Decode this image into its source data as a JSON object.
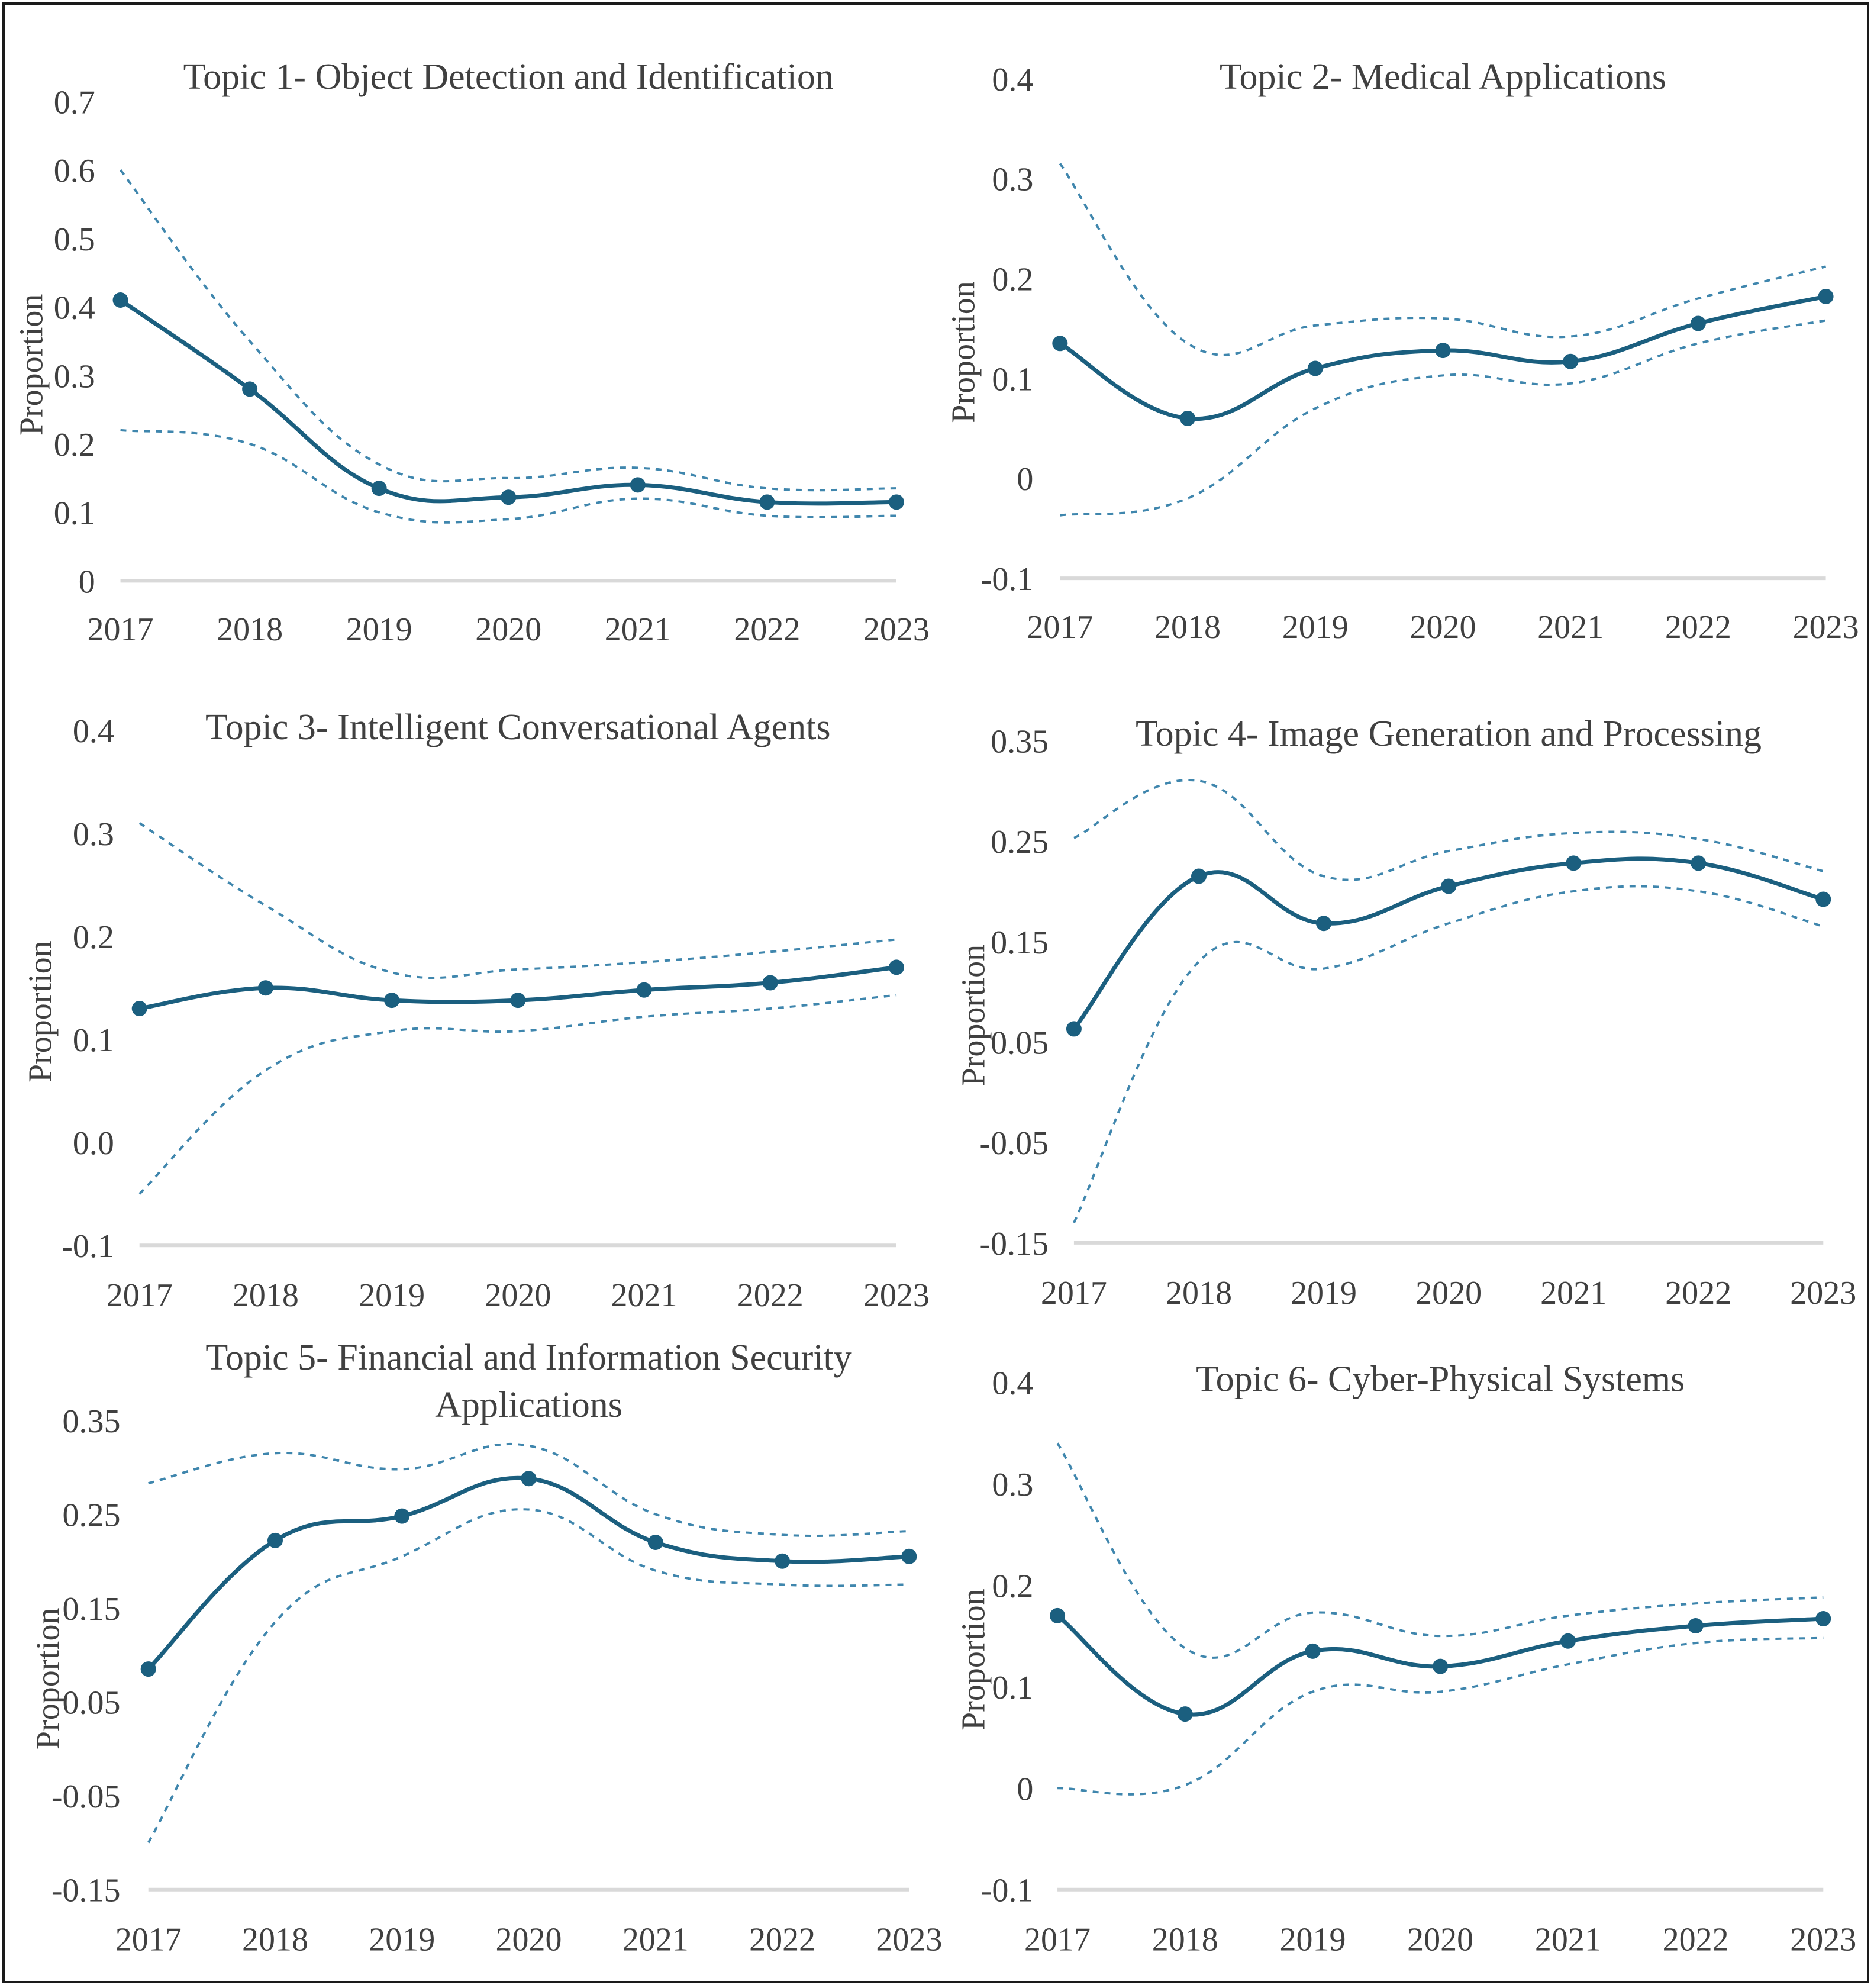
{
  "figure": {
    "series_names": {
      "mean": "Proportion",
      "upper": "Upper bound",
      "lower": "Lower bound"
    },
    "colors": {
      "line": "#1b5f7f",
      "ci": "#3f86ad",
      "axis": "#d9d9d9",
      "text": "#404040"
    }
  },
  "chart_data": [
    {
      "type": "line",
      "title": "Topic 1- Object Detection and Identification",
      "xlabel": "",
      "ylabel": "Proportion",
      "categories": [
        "2017",
        "2018",
        "2019",
        "2020",
        "2021",
        "2022",
        "2023"
      ],
      "yticks": [
        "0",
        "0.1",
        "0.2",
        "0.3",
        "0.4",
        "0.5",
        "0.6",
        "0.7"
      ],
      "ylim": [
        0,
        0.7
      ],
      "grid": false,
      "series": [
        {
          "name": "Proportion",
          "values": [
            0.41,
            0.28,
            0.135,
            0.122,
            0.14,
            0.115,
            0.115
          ]
        },
        {
          "name": "Upper bound",
          "values": [
            0.6,
            0.35,
            0.17,
            0.15,
            0.165,
            0.135,
            0.135
          ]
        },
        {
          "name": "Lower bound",
          "values": [
            0.22,
            0.2,
            0.1,
            0.09,
            0.12,
            0.095,
            0.095
          ]
        }
      ]
    },
    {
      "type": "line",
      "title": "Topic 2- Medical Applications",
      "xlabel": "",
      "ylabel": "Proportion",
      "categories": [
        "2017",
        "2018",
        "2019",
        "2020",
        "2021",
        "2022",
        "2023"
      ],
      "yticks": [
        "-0.1",
        "0",
        "0.1",
        "0.2",
        "0.3",
        "0.4"
      ],
      "ylim": [
        -0.1,
        0.4
      ],
      "grid": false,
      "series": [
        {
          "name": "Proportion",
          "values": [
            0.135,
            0.06,
            0.11,
            0.128,
            0.117,
            0.155,
            0.182
          ]
        },
        {
          "name": "Upper bound",
          "values": [
            0.315,
            0.135,
            0.153,
            0.16,
            0.142,
            0.18,
            0.212
          ]
        },
        {
          "name": "Lower bound",
          "values": [
            -0.037,
            -0.02,
            0.07,
            0.103,
            0.095,
            0.135,
            0.158
          ]
        }
      ]
    },
    {
      "type": "line",
      "title": "Topic 3- Intelligent Conversational Agents",
      "xlabel": "",
      "ylabel": "Proportion",
      "categories": [
        "2017",
        "2018",
        "2019",
        "2020",
        "2021",
        "2022",
        "2023"
      ],
      "yticks": [
        "-0.1",
        "0.0",
        "0.1",
        "0.2",
        "0.3",
        "0.4"
      ],
      "ylim": [
        -0.1,
        0.4
      ],
      "grid": false,
      "series": [
        {
          "name": "Proportion",
          "values": [
            0.13,
            0.15,
            0.138,
            0.138,
            0.148,
            0.155,
            0.17
          ]
        },
        {
          "name": "Upper bound",
          "values": [
            0.31,
            0.23,
            0.165,
            0.168,
            0.175,
            0.185,
            0.197
          ]
        },
        {
          "name": "Lower bound",
          "values": [
            -0.05,
            0.07,
            0.108,
            0.108,
            0.122,
            0.13,
            0.143
          ]
        }
      ]
    },
    {
      "type": "line",
      "title": "Topic 4- Image Generation and Processing",
      "xlabel": "",
      "ylabel": "Proportion",
      "categories": [
        "2017",
        "2018",
        "2019",
        "2020",
        "2021",
        "2022",
        "2023"
      ],
      "yticks": [
        "-0.15",
        "-0.05",
        "0.05",
        "0.15",
        "0.25",
        "0.35"
      ],
      "ylim": [
        -0.15,
        0.35
      ],
      "grid": false,
      "series": [
        {
          "name": "Proportion",
          "values": [
            0.063,
            0.215,
            0.168,
            0.205,
            0.228,
            0.228,
            0.192
          ]
        },
        {
          "name": "Upper bound",
          "values": [
            0.253,
            0.31,
            0.215,
            0.24,
            0.258,
            0.252,
            0.22
          ]
        },
        {
          "name": "Lower bound",
          "values": [
            -0.13,
            0.13,
            0.123,
            0.168,
            0.2,
            0.2,
            0.165
          ]
        }
      ]
    },
    {
      "type": "line",
      "title": "Topic 5- Financial and Information Security Applications",
      "title_lines": [
        "Topic 5- Financial and Information Security",
        "Applications"
      ],
      "xlabel": "",
      "ylabel": "Proportion",
      "categories": [
        "2017",
        "2018",
        "2019",
        "2020",
        "2021",
        "2022",
        "2023"
      ],
      "yticks": [
        "-0.15",
        "-0.05",
        "0.05",
        "0.15",
        "0.25",
        "0.35"
      ],
      "ylim": [
        -0.15,
        0.35
      ],
      "grid": false,
      "series": [
        {
          "name": "Proportion",
          "values": [
            0.085,
            0.222,
            0.248,
            0.288,
            0.22,
            0.2,
            0.205
          ]
        },
        {
          "name": "Upper bound",
          "values": [
            0.283,
            0.315,
            0.298,
            0.323,
            0.25,
            0.228,
            0.232
          ]
        },
        {
          "name": "Lower bound",
          "values": [
            -0.1,
            0.135,
            0.205,
            0.255,
            0.19,
            0.175,
            0.175
          ]
        }
      ]
    },
    {
      "type": "line",
      "title": "Topic 6- Cyber-Physical Systems",
      "xlabel": "",
      "ylabel": "Proportion",
      "categories": [
        "2017",
        "2018",
        "2019",
        "2020",
        "2021",
        "2022",
        "2023"
      ],
      "yticks": [
        "-0.1",
        "0",
        "0.1",
        "0.2",
        "0.3",
        "0.4"
      ],
      "ylim": [
        -0.1,
        0.4
      ],
      "grid": false,
      "series": [
        {
          "name": "Proportion",
          "values": [
            0.17,
            0.073,
            0.135,
            0.12,
            0.145,
            0.16,
            0.167
          ]
        },
        {
          "name": "Upper bound",
          "values": [
            0.34,
            0.138,
            0.173,
            0.15,
            0.17,
            0.182,
            0.188
          ]
        },
        {
          "name": "Lower bound",
          "values": [
            0.0,
            0.003,
            0.095,
            0.095,
            0.122,
            0.143,
            0.148
          ]
        }
      ]
    }
  ]
}
